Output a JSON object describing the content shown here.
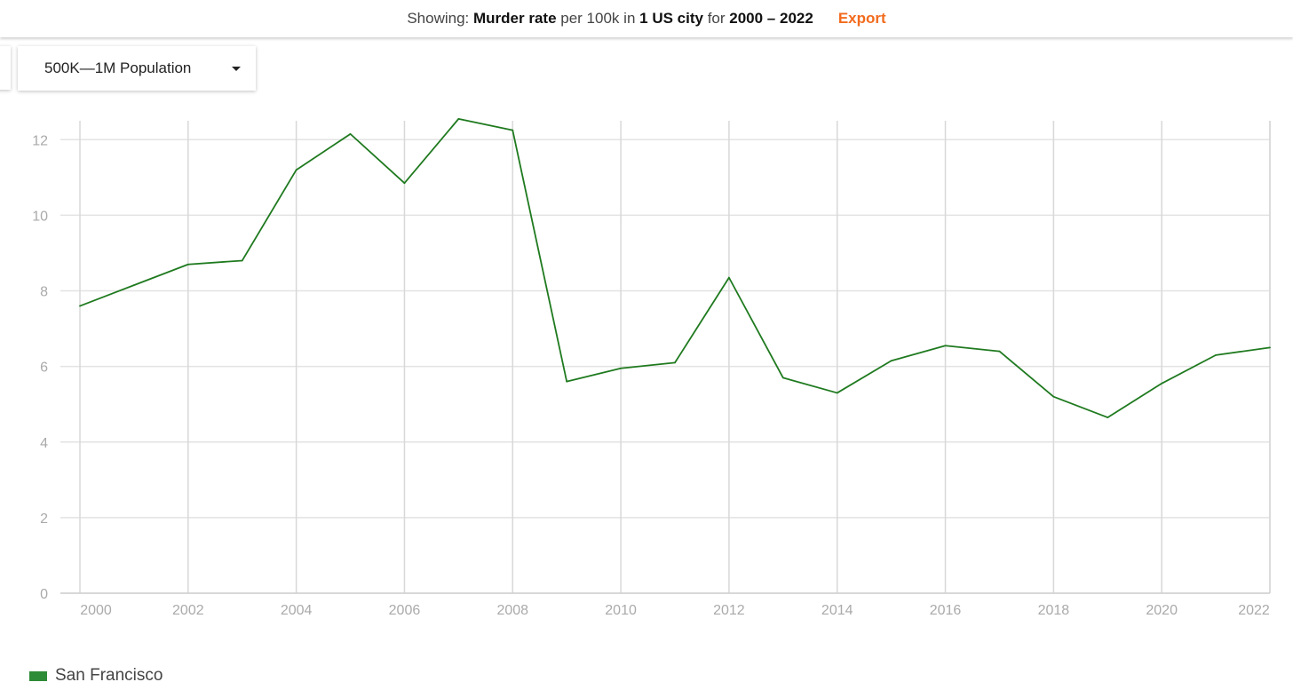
{
  "header": {
    "showing_label": "Showing:",
    "metric": "Murder rate",
    "per_label": "per 100k",
    "in_label": "in",
    "scope": "1 US city",
    "for_label": "for",
    "range": "2000 – 2022",
    "export_label": "Export",
    "export_color": "#f26b1d"
  },
  "filter": {
    "selected": "500K—1M Population",
    "icon": "caret-down-icon"
  },
  "chart_data": {
    "type": "line",
    "title": "",
    "xlabel": "",
    "ylabel": "",
    "xlim": [
      2000,
      2022
    ],
    "ylim": [
      0,
      12.5
    ],
    "grid": true,
    "legend_position": "bottom-left",
    "x_ticks": [
      "2000",
      "2002",
      "2004",
      "2006",
      "2008",
      "2010",
      "2012",
      "2014",
      "2016",
      "2018",
      "2020",
      "2022"
    ],
    "y_ticks": [
      "0",
      "2",
      "4",
      "6",
      "8",
      "10",
      "12"
    ],
    "x": [
      2000,
      2001,
      2002,
      2003,
      2004,
      2005,
      2006,
      2007,
      2008,
      2009,
      2010,
      2011,
      2012,
      2013,
      2014,
      2015,
      2016,
      2017,
      2018,
      2019,
      2020,
      2021,
      2022
    ],
    "series": [
      {
        "name": "San Francisco",
        "color": "#1f7a1f",
        "legend_color": "#2e8b37",
        "values": [
          7.6,
          8.15,
          8.7,
          8.8,
          11.2,
          12.15,
          10.85,
          12.55,
          12.25,
          5.6,
          5.95,
          6.1,
          8.35,
          5.7,
          5.3,
          6.15,
          6.55,
          6.4,
          5.2,
          4.65,
          5.55,
          6.3,
          6.5
        ]
      }
    ]
  }
}
